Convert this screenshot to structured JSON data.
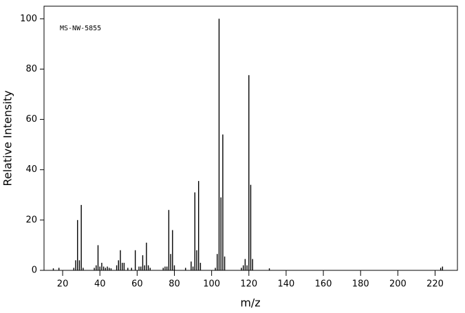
{
  "chart_data": {
    "type": "spectrum",
    "annotation": "MS-NW-5855",
    "xlabel": "m/z",
    "ylabel": "Relative Intensity",
    "color": "#000000",
    "x": [
      15,
      18,
      26,
      27,
      28,
      29,
      30,
      31,
      37,
      38,
      39,
      40,
      41,
      42,
      43,
      44,
      45,
      46,
      49,
      50,
      51,
      52,
      53,
      55,
      57,
      59,
      61,
      62,
      63,
      64,
      65,
      66,
      67,
      74,
      75,
      76,
      77,
      78,
      79,
      80,
      86,
      89,
      90,
      91,
      92,
      93,
      94,
      102,
      103,
      104,
      105,
      106,
      107,
      116,
      117,
      118,
      119,
      120,
      121,
      122,
      131,
      223,
      224
    ],
    "values": [
      0.8,
      1,
      1,
      4,
      20,
      4,
      26,
      1,
      1,
      2,
      10,
      1.5,
      3,
      1.5,
      1,
      1.5,
      1,
      0.8,
      2,
      4,
      8,
      3,
      3,
      1,
      1,
      8,
      1.5,
      1.5,
      6,
      2,
      11,
      2,
      1,
      1,
      1.5,
      1.5,
      24,
      6.5,
      16,
      2,
      1,
      3.5,
      1.5,
      31,
      8,
      35.5,
      3,
      1,
      6.5,
      100,
      29,
      54,
      5.5,
      1,
      2,
      4.5,
      2,
      77.6,
      34,
      4.5,
      0.8,
      1,
      1.5
    ],
    "xlim": [
      10,
      232
    ],
    "ylim": [
      0,
      105
    ],
    "xticks": [
      20,
      40,
      60,
      80,
      100,
      120,
      140,
      160,
      180,
      200,
      220
    ],
    "yticks": [
      0,
      20,
      40,
      60,
      80,
      100
    ]
  }
}
